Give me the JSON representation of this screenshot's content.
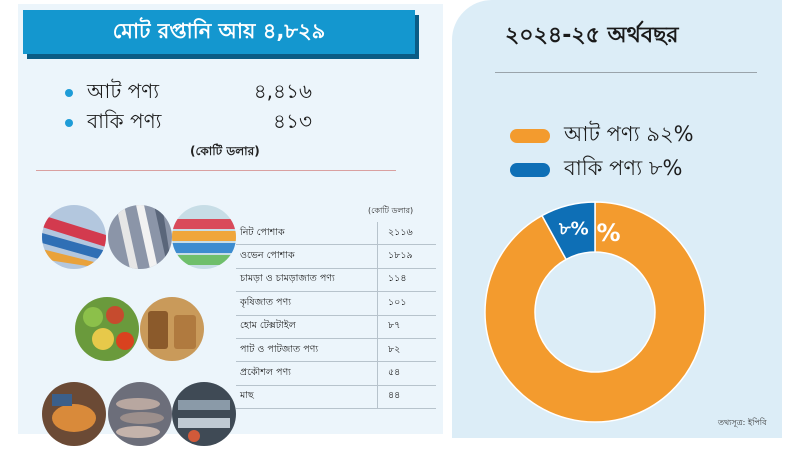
{
  "header": {
    "title": "মোট রপ্তানি আয় ৪,৮২৯",
    "summary": [
      {
        "label": "আট পণ্য",
        "value": "৪,৪১৬"
      },
      {
        "label": "বাকি পণ্য",
        "value": "৪১৩"
      }
    ],
    "unit": "(কোটি ডলার)"
  },
  "table": {
    "unit": "(কোটি ডলার)",
    "rows": [
      {
        "name": "নিট পোশাক",
        "value": "২১১৬"
      },
      {
        "name": "ওভেন পোশাক",
        "value": "১৮১৯"
      },
      {
        "name": "চামড়া ও চামড়াজাত পণ্য",
        "value": "১১৪"
      },
      {
        "name": "কৃষিজাত পণ্য",
        "value": "১০১"
      },
      {
        "name": "হোম টেক্সটাইল",
        "value": "৮৭"
      },
      {
        "name": "পাট ও পাটজাত পণ্য",
        "value": "৮২"
      },
      {
        "name": "প্রকৌশল পণ্য",
        "value": "৫৪"
      },
      {
        "name": "মাছ",
        "value": "৪৪"
      }
    ]
  },
  "chart": {
    "title": "২০২৪-২৫ অর্থবছর",
    "source": "তথ্যসূত্র: ইপিবি"
  },
  "chart_data": {
    "type": "pie",
    "title": "২০২৪-২৫ অর্থবছর",
    "categories": [
      "আট পণ্য",
      "বাকি পণ্য"
    ],
    "values": [
      92,
      8
    ],
    "legend": [
      "আট পণ্য ৯২%",
      "বাকি পণ্য ৮%"
    ],
    "data_labels": [
      "৯২%",
      "৮%"
    ],
    "colors": [
      "#f39b2e",
      "#0e6fb6"
    ],
    "legend_position": "top"
  }
}
